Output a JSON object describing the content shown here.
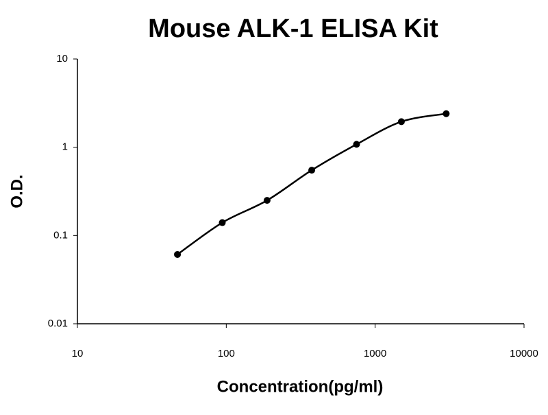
{
  "chart_data": {
    "type": "scatter",
    "title": "Mouse ALK-1 ELISA Kit",
    "x_label": "Concentration(pg/ml)",
    "y_label": "O.D.",
    "x": [
      47,
      94,
      188,
      375,
      750,
      1500,
      3000
    ],
    "values": [
      0.061,
      0.14,
      0.25,
      0.55,
      1.08,
      1.95,
      2.4
    ],
    "color": "#000000",
    "xlim": [
      10,
      10000
    ],
    "xticks": [
      10,
      100,
      1000,
      10000
    ],
    "ylim": [
      0.01,
      10
    ],
    "yticks": [
      0.01,
      0.1,
      1,
      10
    ],
    "xlog": true,
    "ylog": true,
    "grid": false,
    "fit_line": true
  }
}
